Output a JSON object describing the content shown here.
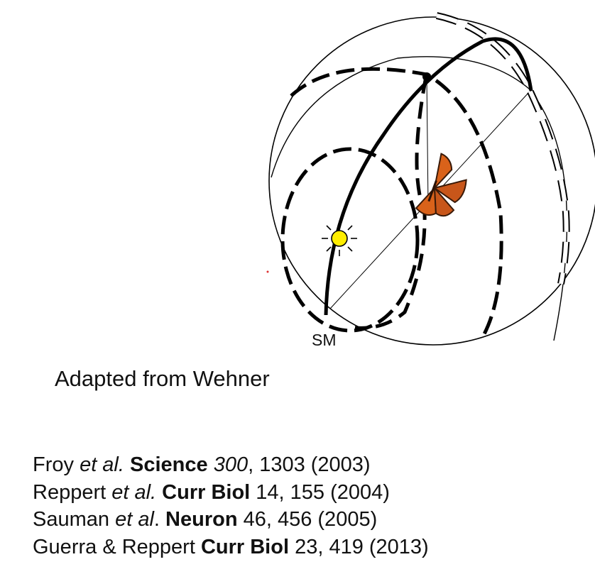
{
  "diagram": {
    "label_sm": "SM",
    "colors": {
      "sun": "#ffee00",
      "butterfly": "#d9621a",
      "lines": "#000000"
    },
    "icons": [
      "sun-icon",
      "butterfly-icon"
    ]
  },
  "caption": "Adapted from Wehner",
  "references": [
    {
      "parts": [
        {
          "text": "Froy ",
          "style": "normal"
        },
        {
          "text": "et al.",
          "style": "italic"
        },
        {
          "text": " Science ",
          "style": "bold"
        },
        {
          "text": "300",
          "style": "italic"
        },
        {
          "text": ", 1303 (2003)",
          "style": "normal"
        }
      ]
    },
    {
      "parts": [
        {
          "text": "Reppert ",
          "style": "normal"
        },
        {
          "text": "et al.",
          "style": "italic"
        },
        {
          "text": " Curr Biol",
          "style": "bold"
        },
        {
          "text": " 14, 155 (2004)",
          "style": "normal"
        }
      ]
    },
    {
      "parts": [
        {
          "text": "Sauman ",
          "style": "normal"
        },
        {
          "text": "et al",
          "style": "italic"
        },
        {
          "text": ". ",
          "style": "normal"
        },
        {
          "text": "Neuron",
          "style": "bold"
        },
        {
          "text": " 46, 456 (2005)",
          "style": "normal"
        }
      ]
    },
    {
      "parts": [
        {
          "text": "Guerra & Reppert ",
          "style": "normal"
        },
        {
          "text": "Curr Biol",
          "style": "bold"
        },
        {
          "text": " 23, 419 (2013)",
          "style": "normal"
        }
      ]
    }
  ]
}
